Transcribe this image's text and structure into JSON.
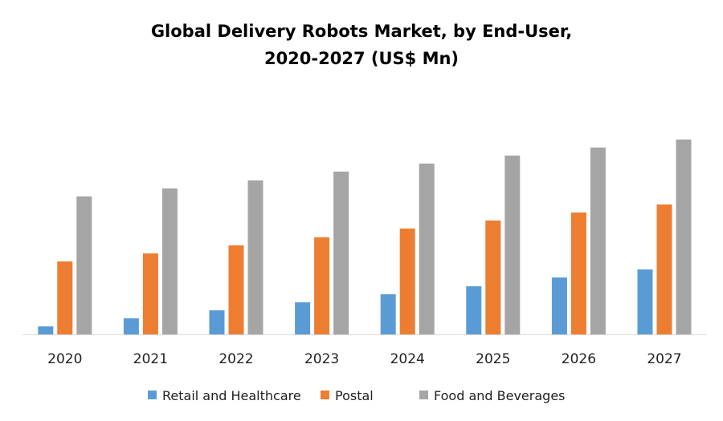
{
  "chart_data": {
    "type": "bar",
    "title_lines": [
      "Global Delivery Robots Market, by End-User,",
      "2020-2027 (US$ Mn)"
    ],
    "xlabel": "",
    "ylabel": "",
    "categories": [
      "2020",
      "2021",
      "2022",
      "2023",
      "2024",
      "2025",
      "2026",
      "2027"
    ],
    "series": [
      {
        "name": "Retail and Healthcare",
        "color": "#5B9BD5",
        "values": [
          10,
          20,
          30,
          40,
          50,
          60,
          71,
          81
        ]
      },
      {
        "name": "Postal",
        "color": "#ED7D31",
        "values": [
          91,
          101,
          111,
          121,
          132,
          142,
          152,
          162
        ]
      },
      {
        "name": "Food and Beverages",
        "color": "#A5A5A5",
        "values": [
          172,
          182,
          192,
          203,
          213,
          223,
          233,
          243
        ]
      }
    ],
    "ylim": [
      0,
      280
    ],
    "y_axis_shown": false,
    "grid": false,
    "legend_position": "bottom"
  }
}
